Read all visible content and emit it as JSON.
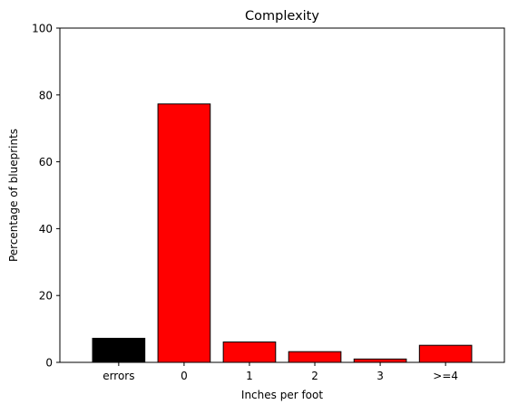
{
  "chart_data": {
    "type": "bar",
    "title": "Complexity",
    "xlabel": "Inches per foot",
    "ylabel": "Percentage of blueprints",
    "categories": [
      "errors",
      "0",
      "1",
      "2",
      "3",
      ">=4"
    ],
    "values": [
      7.2,
      77.3,
      6.1,
      3.2,
      1.0,
      5.1
    ],
    "bar_colors": [
      "#000000",
      "#ff0000",
      "#ff0000",
      "#ff0000",
      "#ff0000",
      "#ff0000"
    ],
    "edge_color": "#000000",
    "ylim": [
      0,
      100
    ],
    "yticks": [
      0,
      20,
      40,
      60,
      80,
      100
    ],
    "grid": false,
    "legend": "none"
  }
}
